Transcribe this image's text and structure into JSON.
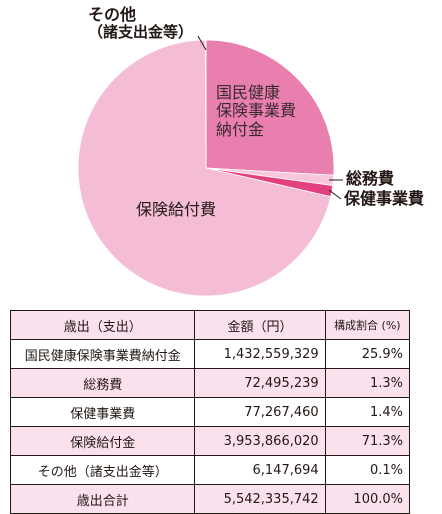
{
  "colors": {
    "large_slice": "#f5bcd5",
    "kokuho_slice": "#e97fae",
    "soumu_slice": "#f9c6dc",
    "hoken_slice": "#e3407f",
    "other_slice": "#f7d3e4",
    "table_header": "#fbe1ee",
    "line": "#231815"
  },
  "chart_data": {
    "type": "pie",
    "slices": [
      {
        "label": "国民健康保険事業費納付金",
        "value": 25.9
      },
      {
        "label": "総務費",
        "value": 1.3
      },
      {
        "label": "保健事業費",
        "value": 1.4
      },
      {
        "label": "保険給付費",
        "value": 71.3
      },
      {
        "label": "その他（諸支出金等）",
        "value": 0.1
      }
    ]
  },
  "labels": {
    "other_line1": "その他",
    "other_line2": "（諸支出金等）",
    "kokuho_line1": "国民健康",
    "kokuho_line2": "保険事業費",
    "kokuho_line3": "納付金",
    "soumu": "総務費",
    "hoken_jigyo": "保健事業費",
    "kyufu": "保険給付費"
  },
  "table": {
    "headers": [
      "歳出（支出）",
      "金額（円）",
      "構成割合 (%)"
    ],
    "rows": [
      {
        "name": "国民健康保険事業費納付金",
        "amount": "1,432,559,329",
        "ratio": "25.9%"
      },
      {
        "name": "総務費",
        "amount": "72,495,239",
        "ratio": "1.3%"
      },
      {
        "name": "保健事業費",
        "amount": "77,267,460",
        "ratio": "1.4%"
      },
      {
        "name": "保険給付金",
        "amount": "3,953,866,020",
        "ratio": "71.3%"
      },
      {
        "name": "その他（諸支出金等）",
        "amount": "6,147,694",
        "ratio": "0.1%"
      },
      {
        "name": "歳出合計",
        "amount": "5,542,335,742",
        "ratio": "100.0%"
      }
    ]
  }
}
